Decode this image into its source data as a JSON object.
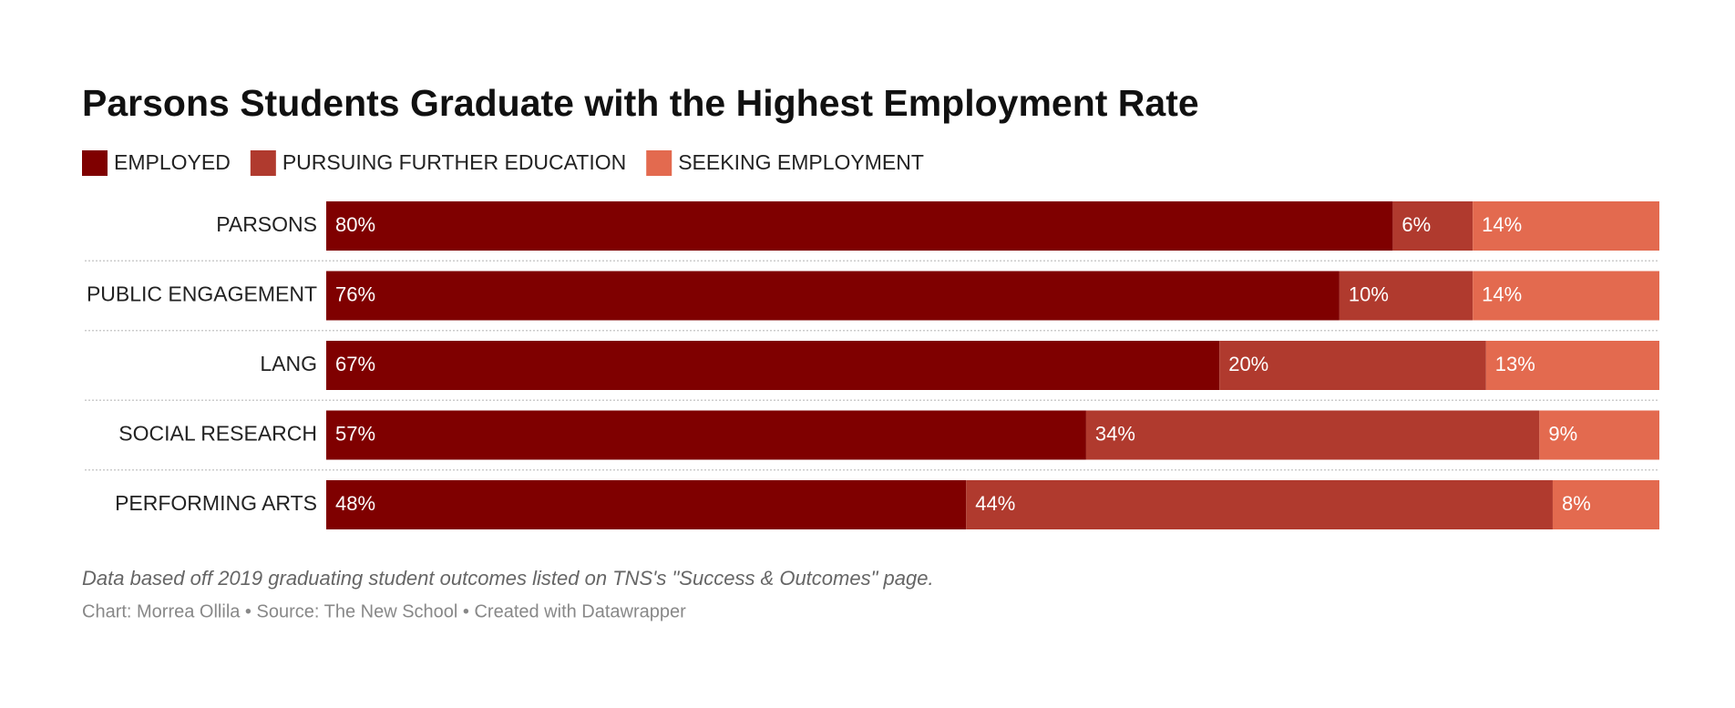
{
  "chart_data": {
    "type": "stacked-bar-horizontal",
    "title": "Parsons Students Graduate with the Highest Employment Rate",
    "categories": [
      "PARSONS",
      "PUBLIC ENGAGEMENT",
      "LANG",
      "SOCIAL RESEARCH",
      "PERFORMING ARTS"
    ],
    "series": [
      {
        "name": "EMPLOYED",
        "color": "#7f0000",
        "values": [
          80,
          76,
          67,
          57,
          48
        ],
        "value_labels": [
          "80%",
          "76%",
          "67%",
          "57%",
          "48%"
        ]
      },
      {
        "name": "PURSUING FURTHER EDUCATION",
        "color": "#b03a2e",
        "values": [
          6,
          10,
          20,
          34,
          44
        ],
        "value_labels": [
          "6%",
          "10%",
          "20%",
          "34%",
          "44%"
        ]
      },
      {
        "name": "SEEKING EMPLOYMENT",
        "color": "#e36a4f",
        "values": [
          14,
          14,
          13,
          9,
          8
        ],
        "value_labels": [
          "14%",
          "14%",
          "13%",
          "9%",
          "8%"
        ]
      }
    ],
    "xlim": [
      0,
      100
    ],
    "note": "Data based off 2019 graduating student outcomes listed on TNS's \"Success & Outcomes\" page.",
    "source": "Chart: Morrea Ollila • Source: The New School • Created with Datawrapper"
  }
}
